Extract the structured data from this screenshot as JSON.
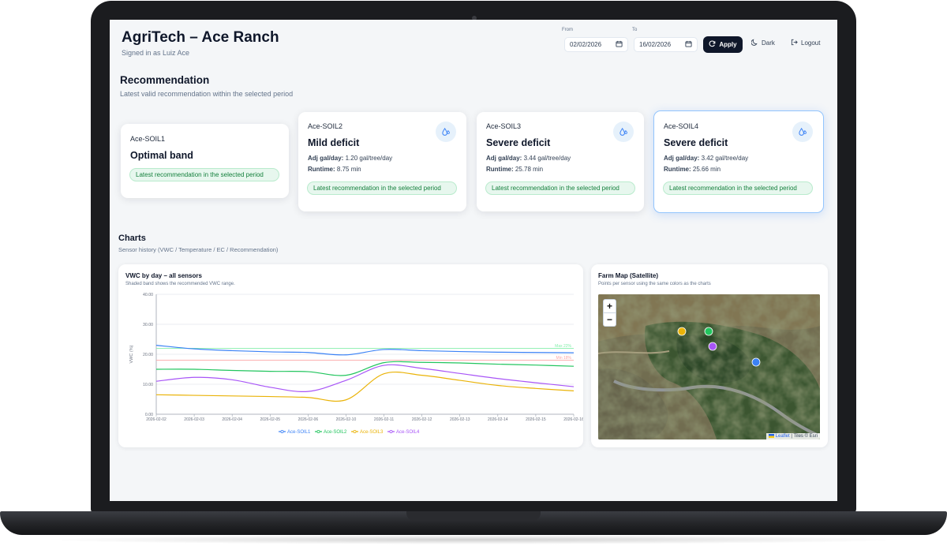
{
  "header": {
    "title": "AgriTech – Ace Ranch",
    "signed_in": "Signed in as Luiz Ace",
    "from_label": "From",
    "to_label": "To",
    "from_value": "02/02/2026",
    "to_value": "16/02/2026",
    "apply_label": "Apply",
    "dark_label": "Dark",
    "logout_label": "Logout"
  },
  "recommendation": {
    "title": "Recommendation",
    "subtitle": "Latest valid recommendation within the selected period",
    "cards": [
      {
        "sensor": "Ace-SOIL1",
        "status": "Optimal band",
        "pill": "Latest recommendation in the selected period"
      },
      {
        "sensor": "Ace-SOIL2",
        "status": "Mild deficit",
        "adj_label": "Adj gal/day:",
        "adj_value": "1.20 gal/tree/day",
        "runtime_label": "Runtime:",
        "runtime_value": "8.75 min",
        "pill": "Latest recommendation in the selected period"
      },
      {
        "sensor": "Ace-SOIL3",
        "status": "Severe deficit",
        "adj_label": "Adj gal/day:",
        "adj_value": "3.44 gal/tree/day",
        "runtime_label": "Runtime:",
        "runtime_value": "25.78 min",
        "pill": "Latest recommendation in the selected period"
      },
      {
        "sensor": "Ace-SOIL4",
        "status": "Severe deficit",
        "adj_label": "Adj gal/day:",
        "adj_value": "3.42 gal/tree/day",
        "runtime_label": "Runtime:",
        "runtime_value": "25.66 min",
        "pill": "Latest recommendation in the selected period"
      }
    ]
  },
  "charts": {
    "title": "Charts",
    "subtitle": "Sensor history (VWC / Temperature / EC / Recommendation)"
  },
  "vwc_panel": {
    "title": "VWC by day – all sensors",
    "subtitle": "Shaded band shows the recommended VWC range."
  },
  "map_panel": {
    "title": "Farm Map (Satellite)",
    "subtitle": "Points per sensor using the same colors as the charts",
    "zoom_in": "+",
    "zoom_out": "−",
    "attribution_link": "Leaflet",
    "attribution_rest": "| Tiles © Esri",
    "points": [
      {
        "sensor": "Ace-SOIL1",
        "color": "#3b82f6"
      },
      {
        "sensor": "Ace-SOIL2",
        "color": "#22c55e"
      },
      {
        "sensor": "Ace-SOIL3",
        "color": "#eab308"
      },
      {
        "sensor": "Ace-SOIL4",
        "color": "#a855f7"
      }
    ]
  },
  "colors": {
    "soil1": "#3b82f6",
    "soil2": "#22c55e",
    "soil3": "#eab308",
    "soil4": "#a855f7",
    "max_line": "#86efac",
    "min_line": "#fca5a5"
  },
  "chart_data": {
    "type": "line",
    "title": "VWC by day – all sensors",
    "xlabel": "",
    "ylabel": "VWC (%)",
    "ylim": [
      0,
      40
    ],
    "yticks": [
      "0.00",
      "10.00",
      "20.00",
      "30.00",
      "40.00"
    ],
    "x": [
      "2026-02-02",
      "2026-02-03",
      "2026-02-04",
      "2026-02-05",
      "2026-02-06",
      "2026-02-10",
      "2026-02-11",
      "2026-02-12",
      "2026-02-13",
      "2026-02-14",
      "2026-02-15",
      "2026-02-16"
    ],
    "series": [
      {
        "name": "Ace-SOIL1",
        "color": "#3b82f6",
        "values": [
          23.0,
          21.8,
          21.2,
          20.8,
          20.6,
          19.8,
          21.6,
          21.2,
          20.9,
          20.7,
          20.6,
          20.5
        ]
      },
      {
        "name": "Ace-SOIL2",
        "color": "#22c55e",
        "values": [
          15.0,
          15.0,
          14.6,
          14.3,
          14.2,
          13.0,
          17.2,
          17.3,
          17.1,
          16.7,
          16.4,
          16.0
        ]
      },
      {
        "name": "Ace-SOIL3",
        "color": "#eab308",
        "values": [
          6.5,
          6.3,
          6.1,
          5.9,
          5.6,
          4.8,
          13.5,
          13.0,
          11.3,
          9.6,
          8.6,
          7.8
        ]
      },
      {
        "name": "Ace-SOIL4",
        "color": "#a855f7",
        "values": [
          11.0,
          12.3,
          11.5,
          9.0,
          7.6,
          11.3,
          16.3,
          15.3,
          13.6,
          11.9,
          10.5,
          9.2
        ]
      }
    ],
    "reference_lines": [
      {
        "label": "Max 22%",
        "value": 22,
        "color": "#86efac"
      },
      {
        "label": "Min 18%",
        "value": 18,
        "color": "#fca5a5"
      }
    ],
    "legend_position": "bottom",
    "grid": true
  }
}
